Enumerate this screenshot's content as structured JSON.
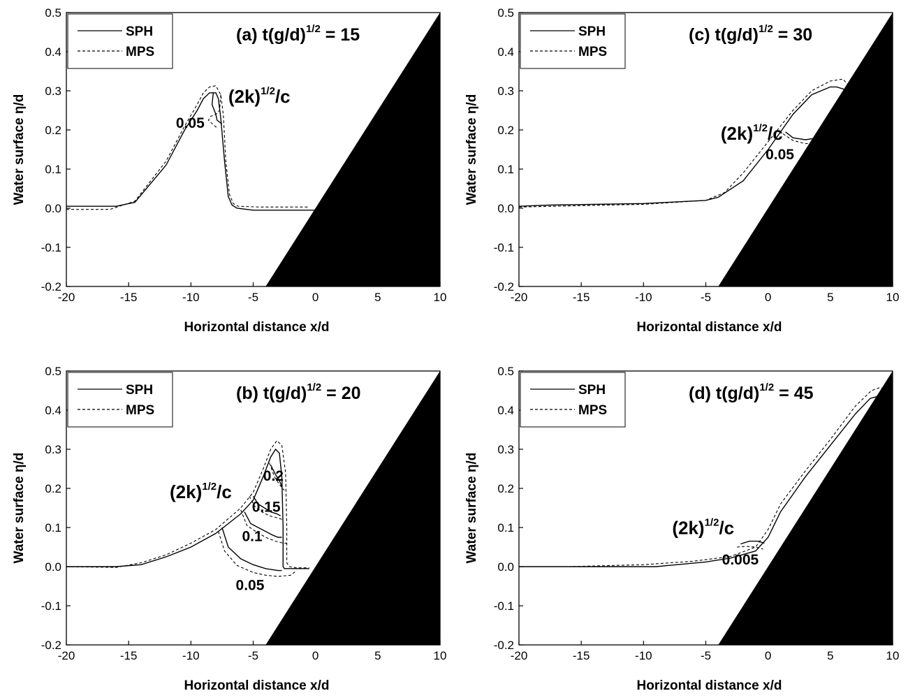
{
  "chart_data": [
    {
      "type": "line",
      "title": "(a) t(g/d)",
      "title_sup": "1/2",
      "title_tail": " = 15",
      "xlabel": "Horizontal distance x/d",
      "ylabel": "Water surface  η/d",
      "xlim": [
        -20,
        10
      ],
      "ylim": [
        -0.2,
        0.5
      ],
      "xticks": [
        "-20",
        "-15",
        "-10",
        "-5",
        "0",
        "5",
        "10"
      ],
      "yticks": [
        "-0.2",
        "-0.1",
        "0.0",
        "0.1",
        "0.2",
        "0.3",
        "0.4",
        "0.5"
      ],
      "legend": {
        "position": "top-left",
        "entries": [
          "SPH",
          "MPS"
        ]
      },
      "slope": {
        "x": [
          -4,
          10
        ],
        "y": [
          -0.2,
          0.5
        ]
      },
      "series": [
        {
          "name": "SPH",
          "x": [
            -20,
            -16,
            -14.5,
            -12,
            -10.5,
            -9.5,
            -9,
            -8.5,
            -8,
            -7.8,
            -7.6,
            -7.3,
            -7.0,
            -6.7,
            -6.3,
            -5,
            0
          ],
          "y": [
            0.005,
            0.005,
            0.015,
            0.11,
            0.2,
            0.25,
            0.28,
            0.295,
            0.295,
            0.28,
            0.23,
            0.12,
            0.03,
            0.008,
            0.0,
            -0.005,
            -0.005
          ]
        },
        {
          "name": "MPS",
          "x": [
            -20,
            -16.5,
            -14.5,
            -12,
            -10.5,
            -9.5,
            -9,
            -8.5,
            -8,
            -7.6,
            -7.4,
            -7.2,
            -6.9,
            -6.6,
            -6.2,
            -4.5,
            -0.5
          ],
          "y": [
            -0.003,
            -0.003,
            0.018,
            0.12,
            0.21,
            0.265,
            0.295,
            0.31,
            0.313,
            0.29,
            0.24,
            0.12,
            0.035,
            0.012,
            0.005,
            0.003,
            0.003
          ]
        },
        {
          "name": "SPH",
          "x": [
            -8.2,
            -8.3,
            -8.0,
            -7.9,
            -7.5
          ],
          "y": [
            0.295,
            0.265,
            0.24,
            0.225,
            0.215
          ]
        },
        {
          "name": "MPS",
          "x": [
            -7.6,
            -7.7,
            -8.0,
            -8.4,
            -8.6,
            -7.9
          ],
          "y": [
            0.29,
            0.25,
            0.24,
            0.235,
            0.225,
            0.205
          ]
        }
      ],
      "annotations": [
        {
          "text": "(2k)",
          "sup": "1/2",
          "tail": "/c",
          "x": -7.0,
          "y": 0.27,
          "size": "big"
        },
        {
          "text": "0.05",
          "x": -11.2,
          "y": 0.205
        }
      ]
    },
    {
      "type": "line",
      "title": "(c) t(g/d)",
      "title_sup": "1/2",
      "title_tail": " = 30",
      "xlabel": "Horizontal distance x/d",
      "ylabel": "Water surface  η/d",
      "xlim": [
        -20,
        10
      ],
      "ylim": [
        -0.2,
        0.5
      ],
      "xticks": [
        "-20",
        "-15",
        "-10",
        "-5",
        "0",
        "5",
        "10"
      ],
      "yticks": [
        "-0.2",
        "-0.1",
        "0.0",
        "0.1",
        "0.2",
        "0.3",
        "0.4",
        "0.5"
      ],
      "legend": {
        "position": "top-left",
        "entries": [
          "SPH",
          "MPS"
        ]
      },
      "slope": {
        "x": [
          -4,
          10
        ],
        "y": [
          -0.2,
          0.5
        ]
      },
      "series": [
        {
          "name": "SPH",
          "x": [
            -20,
            -17.5,
            -10,
            -5,
            -4,
            -2,
            0,
            2,
            3.5,
            5,
            5.5,
            6,
            6.4
          ],
          "y": [
            0.005,
            0.008,
            0.012,
            0.02,
            0.028,
            0.07,
            0.15,
            0.24,
            0.29,
            0.31,
            0.31,
            0.305,
            0.3
          ]
        },
        {
          "name": "MPS",
          "x": [
            -20,
            -10,
            -5,
            -3.5,
            -2,
            0,
            2,
            3.5,
            5,
            6,
            6.3,
            6.7
          ],
          "y": [
            0.003,
            0.01,
            0.02,
            0.04,
            0.09,
            0.17,
            0.25,
            0.3,
            0.325,
            0.33,
            0.32,
            0.305
          ]
        },
        {
          "name": "SPH",
          "x": [
            1.4,
            2.0,
            3.0,
            4.0,
            4.5
          ],
          "y": [
            0.195,
            0.18,
            0.175,
            0.18,
            0.185
          ]
        },
        {
          "name": "MPS",
          "x": [
            1.2,
            2.0,
            3.0,
            4.0,
            4.4
          ],
          "y": [
            0.19,
            0.173,
            0.165,
            0.167,
            0.168
          ]
        }
      ],
      "annotations": [
        {
          "text": "(2k)",
          "sup": "1/2",
          "tail": "/c",
          "x": -3.8,
          "y": 0.175,
          "size": "big"
        },
        {
          "text": "0.05",
          "x": -0.2,
          "y": 0.125
        }
      ]
    },
    {
      "type": "line",
      "title": "(b) t(g/d)",
      "title_sup": "1/2",
      "title_tail": " = 20",
      "xlabel": "Horizontal distance x/d",
      "ylabel": "Water surface  η/d",
      "xlim": [
        -20,
        10
      ],
      "ylim": [
        -0.2,
        0.5
      ],
      "xticks": [
        "-20",
        "-15",
        "-10",
        "-5",
        "0",
        "5",
        "10"
      ],
      "yticks": [
        "-0.2",
        "-0.1",
        "0.0",
        "0.1",
        "0.2",
        "0.3",
        "0.4",
        "0.5"
      ],
      "legend": {
        "position": "top-left",
        "entries": [
          "SPH",
          "MPS"
        ]
      },
      "slope": {
        "x": [
          -4,
          10
        ],
        "y": [
          -0.2,
          0.5
        ]
      },
      "series": [
        {
          "name": "SPH",
          "x": [
            -20,
            -16,
            -14,
            -12,
            -10,
            -8,
            -6,
            -5,
            -4.2,
            -3.6,
            -3.2,
            -2.9,
            -2.7,
            -2.6,
            -2.6,
            -2.5,
            -2.2,
            -0.5
          ],
          "y": [
            0.0,
            0.0,
            0.005,
            0.025,
            0.05,
            0.085,
            0.135,
            0.17,
            0.23,
            0.28,
            0.3,
            0.29,
            0.23,
            0.1,
            0.0,
            -0.005,
            -0.005,
            -0.005
          ]
        },
        {
          "name": "MPS",
          "x": [
            -20,
            -16,
            -14,
            -12,
            -10,
            -8,
            -6,
            -5,
            -4.2,
            -3.6,
            -3.1,
            -2.7,
            -2.4,
            -2.3,
            -2.3,
            -2.1,
            -1.5,
            -0.5
          ],
          "y": [
            0.0,
            -0.002,
            0.01,
            0.03,
            0.06,
            0.095,
            0.15,
            0.19,
            0.25,
            0.3,
            0.322,
            0.31,
            0.24,
            0.1,
            0.01,
            0.0,
            -0.003,
            -0.003
          ]
        },
        {
          "name": "SPH",
          "x": [
            -7.5,
            -7.0,
            -6.0,
            -5.0,
            -4.0,
            -3.0,
            -2.7
          ],
          "y": [
            0.1,
            0.05,
            0.02,
            0.005,
            -0.005,
            -0.01,
            -0.01
          ]
        },
        {
          "name": "MPS",
          "x": [
            -7.8,
            -7.3,
            -6.3,
            -5.0,
            -4.0,
            -3.0,
            -2.0,
            -1.5
          ],
          "y": [
            0.09,
            0.04,
            0.003,
            -0.015,
            -0.022,
            -0.025,
            -0.022,
            -0.01
          ]
        },
        {
          "name": "SPH",
          "x": [
            -5.7,
            -5.2,
            -4.6,
            -4.0,
            -3.4,
            -3.0,
            -2.7
          ],
          "y": [
            0.14,
            0.11,
            0.1,
            0.09,
            0.08,
            0.075,
            0.075
          ]
        },
        {
          "name": "MPS",
          "x": [
            -6.0,
            -5.5,
            -4.8,
            -4.0,
            -3.2,
            -2.6,
            -2.3
          ],
          "y": [
            0.145,
            0.105,
            0.09,
            0.075,
            0.065,
            0.06,
            0.06
          ]
        },
        {
          "name": "SPH",
          "x": [
            -5.0,
            -4.6,
            -4.1,
            -3.6,
            -3.1,
            -2.8
          ],
          "y": [
            0.18,
            0.16,
            0.15,
            0.14,
            0.135,
            0.13
          ]
        },
        {
          "name": "MPS",
          "x": [
            -5.3,
            -4.9,
            -4.3,
            -3.7,
            -3.1,
            -2.6
          ],
          "y": [
            0.18,
            0.155,
            0.14,
            0.13,
            0.125,
            0.12
          ]
        },
        {
          "name": "SPH",
          "x": [
            -3.6,
            -3.2,
            -2.9,
            -2.7
          ],
          "y": [
            0.26,
            0.235,
            0.22,
            0.205
          ]
        },
        {
          "name": "MPS",
          "x": [
            -3.7,
            -3.3,
            -2.9,
            -2.5
          ],
          "y": [
            0.265,
            0.23,
            0.21,
            0.195
          ]
        }
      ],
      "annotations": [
        {
          "text": "(2k)",
          "sup": "1/2",
          "tail": "/c",
          "x": -11.7,
          "y": 0.175,
          "size": "big"
        },
        {
          "text": "0.2",
          "x": -4.2,
          "y": 0.22
        },
        {
          "text": "0.15",
          "x": -5.1,
          "y": 0.14
        },
        {
          "text": "0.1",
          "x": -5.9,
          "y": 0.065
        },
        {
          "text": "0.05",
          "x": -6.4,
          "y": -0.06
        }
      ]
    },
    {
      "type": "line",
      "title": "(d) t(g/d)",
      "title_sup": "1/2",
      "title_tail": " = 45",
      "xlabel": "Horizontal distance x/d",
      "ylabel": "Water surface  η/d",
      "xlim": [
        -20,
        10
      ],
      "ylim": [
        -0.2,
        0.5
      ],
      "xticks": [
        "-20",
        "-15",
        "-10",
        "-5",
        "0",
        "5",
        "10"
      ],
      "yticks": [
        "-0.2",
        "-0.1",
        "0.0",
        "0.1",
        "0.2",
        "0.3",
        "0.4",
        "0.5"
      ],
      "legend": {
        "position": "top-left",
        "entries": [
          "SPH",
          "MPS"
        ]
      },
      "slope": {
        "x": [
          -4,
          10
        ],
        "y": [
          -0.2,
          0.5
        ]
      },
      "series": [
        {
          "name": "SPH",
          "x": [
            -20,
            -9,
            -8,
            -5,
            -3,
            -1,
            0,
            1,
            3,
            5,
            7,
            8.2,
            8.8,
            9.3
          ],
          "y": [
            0.0,
            0.0,
            0.003,
            0.012,
            0.022,
            0.04,
            0.075,
            0.14,
            0.23,
            0.31,
            0.39,
            0.43,
            0.435,
            0.43
          ]
        },
        {
          "name": "MPS",
          "x": [
            -20,
            -16,
            -10,
            -6,
            -3,
            -1,
            0,
            1,
            3,
            5,
            7,
            8.3,
            9.0,
            9.6
          ],
          "y": [
            0.0,
            0.0,
            0.005,
            0.014,
            0.026,
            0.05,
            0.095,
            0.16,
            0.245,
            0.325,
            0.41,
            0.45,
            0.458,
            0.45
          ]
        },
        {
          "name": "SPH",
          "x": [
            -2.2,
            -1.5,
            -0.8,
            -0.3
          ],
          "y": [
            0.058,
            0.065,
            0.065,
            0.06
          ]
        },
        {
          "name": "MPS",
          "x": [
            -2.5,
            -1.8,
            -1.0,
            -0.4
          ],
          "y": [
            0.05,
            0.052,
            0.05,
            0.045
          ]
        }
      ],
      "annotations": [
        {
          "text": "(2k)",
          "sup": "1/2",
          "tail": "/c",
          "x": -7.7,
          "y": 0.083,
          "size": "big"
        },
        {
          "text": "0.005",
          "x": -3.7,
          "y": 0.005
        }
      ]
    }
  ]
}
